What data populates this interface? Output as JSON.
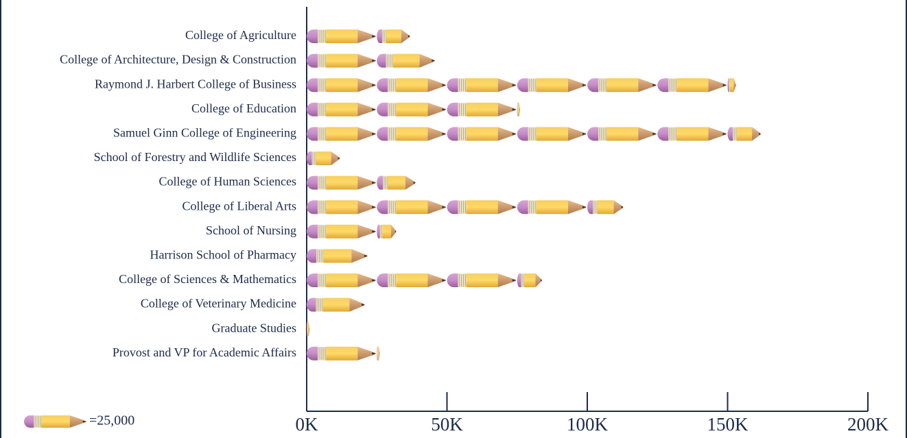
{
  "chart_data": {
    "type": "pictograph",
    "categories": [
      "College of Agriculture",
      "College of Architecture, Design & Construction",
      "Raymond J. Harbert College of Business",
      "College of Education",
      "Samuel Ginn College of Engineering",
      "School of Forestry and Wildlife Sciences",
      "College of Human Sciences",
      "College of Liberal Arts",
      "School of Nursing",
      "Harrison School of Pharmacy",
      "College of Sciences & Mathematics",
      "College of Veterinary Medicine",
      "Graduate Studies",
      "Provost and VP for Academic Affairs"
    ],
    "values": [
      37000,
      46000,
      153000,
      76000,
      162000,
      12000,
      39000,
      113000,
      32000,
      22000,
      84000,
      21000,
      1000,
      26000
    ],
    "xlim": [
      0,
      200000
    ],
    "xticks": [
      {
        "value": 0,
        "label": "0K"
      },
      {
        "value": 50000,
        "label": "50K"
      },
      {
        "value": 100000,
        "label": "100K"
      },
      {
        "value": 150000,
        "label": "150K"
      },
      {
        "value": 200000,
        "label": "200K"
      }
    ],
    "unit_value": 25000,
    "legend_label": "=25,000"
  }
}
